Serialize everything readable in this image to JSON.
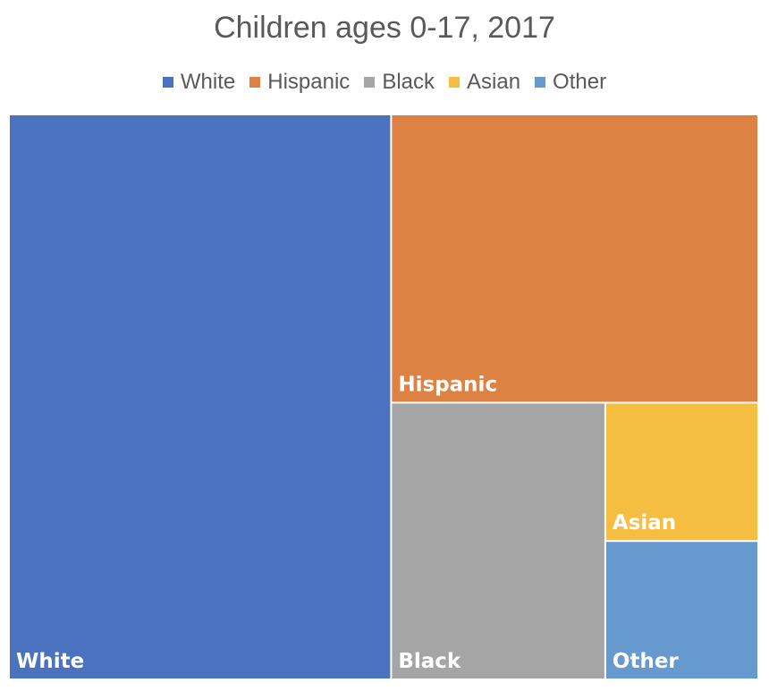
{
  "chart_data": {
    "type": "treemap",
    "title": "Children ages 0-17, 2017",
    "categories": [
      "White",
      "Hispanic",
      "Black",
      "Asian",
      "Other"
    ],
    "values": [
      51,
      25,
      14,
      5,
      5
    ],
    "colors": [
      "#4A72BE",
      "#DE8243",
      "#A5A5A5",
      "#F5BE41",
      "#6699CE"
    ],
    "legend_position": "top"
  }
}
